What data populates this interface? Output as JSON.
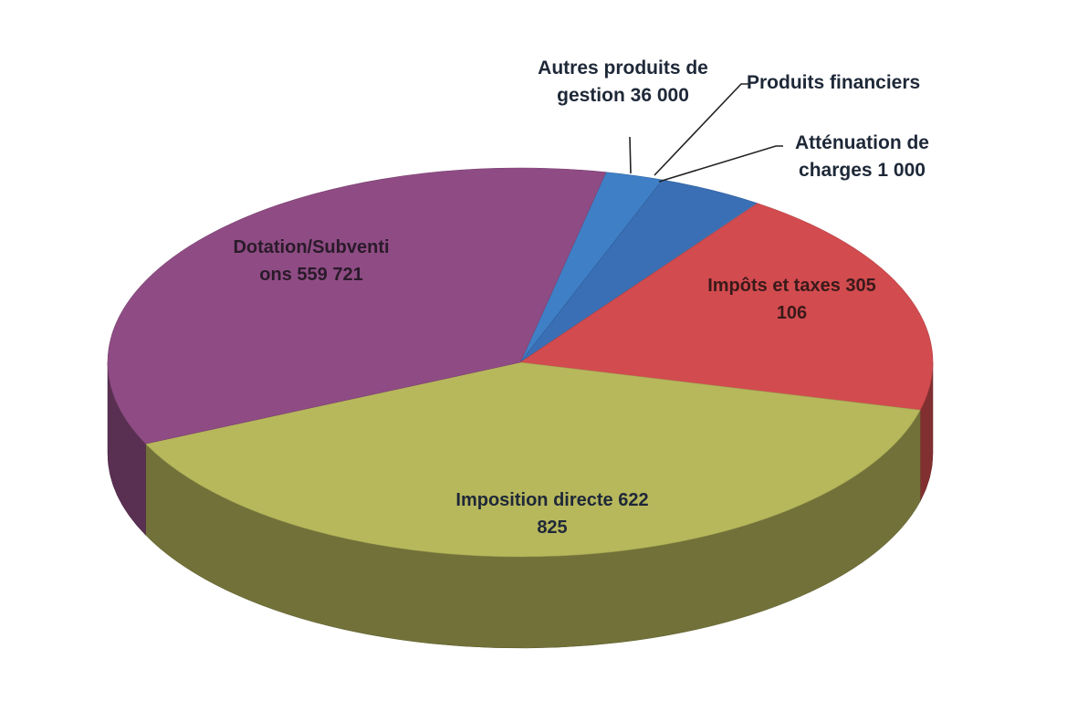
{
  "chart_data": {
    "type": "pie3d",
    "categories": [
      "Autres produits de gestion",
      "Produits financiers",
      "Atténuation de charges",
      "Impôts et taxes",
      "Imposition directe",
      "Dotation/Subventions"
    ],
    "values": [
      36000,
      65000,
      1000,
      305106,
      622825,
      559721
    ],
    "value_labels": [
      "36 000",
      null,
      "1 000",
      "305 106",
      "622 825",
      "559 721"
    ],
    "colors": [
      "#3f7fc6",
      "#3a6fb5",
      "#4a86cc",
      "#d24b4f",
      "#b7b75c",
      "#8f4c84"
    ],
    "start_angle": 12
  }
}
